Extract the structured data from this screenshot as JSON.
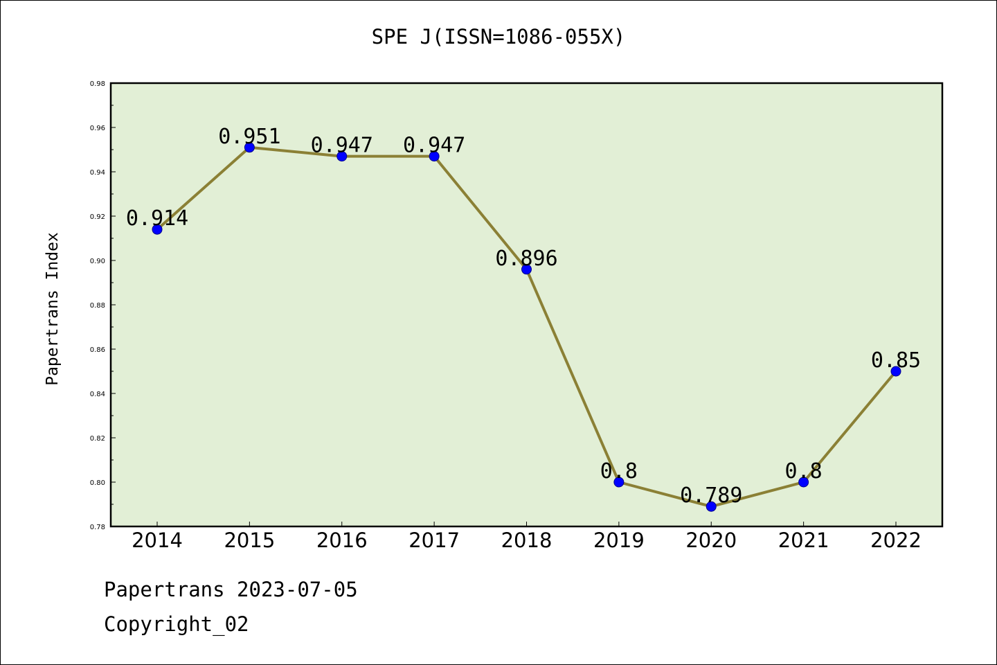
{
  "chart_data": {
    "type": "line",
    "title": "SPE J(ISSN=1086-055X)",
    "xlabel": "",
    "ylabel": "Papertrans Index",
    "categories": [
      "2014",
      "2015",
      "2016",
      "2017",
      "2018",
      "2019",
      "2020",
      "2021",
      "2022"
    ],
    "series": [
      {
        "values": [
          0.914,
          0.951,
          0.947,
          0.947,
          0.896,
          0.8,
          0.789,
          0.8,
          0.85
        ],
        "data_labels": [
          "0.914",
          "0.951",
          "0.947",
          "0.947",
          "0.896",
          "0.8",
          "0.789",
          "0.8",
          "0.85"
        ],
        "line_color": "#8b8035",
        "marker_color": "#0000ff"
      }
    ],
    "ylim": [
      0.78,
      0.98
    ],
    "yticks": [
      "0.78",
      "0.80",
      "0.82",
      "0.84",
      "0.86",
      "0.88",
      "0.90",
      "0.92",
      "0.94",
      "0.96",
      "0.98"
    ],
    "plot_background": "#e2efd6",
    "grid": false,
    "legend": "none"
  },
  "footer": {
    "date_line": "Papertrans 2023-07-05",
    "copyright_line": "Copyright_02"
  }
}
